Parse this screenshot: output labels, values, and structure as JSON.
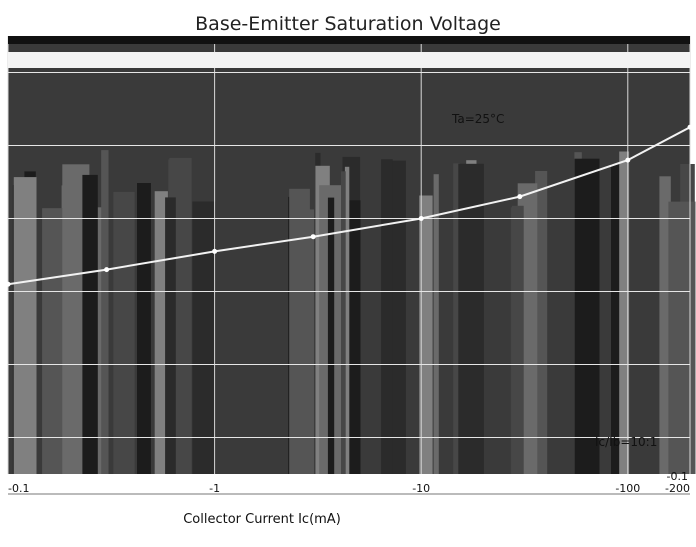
{
  "chart_data": {
    "type": "line",
    "title": "Base-Emitter Saturation Voltage",
    "xlabel": "Collector Current   Ic(mA)",
    "ylabel": "",
    "x_scale": "log",
    "xlim": [
      -0.1,
      -200
    ],
    "x_tick_labels": [
      "-0.1",
      "-1",
      "-10",
      "-100",
      "-200"
    ],
    "x_tick_values": [
      -0.1,
      -1,
      -10,
      -100,
      -200
    ],
    "y_tick_labels": [
      "-0.1"
    ],
    "annotations": [
      "Ta=25°C",
      "Ic/Ib=10:1"
    ],
    "grid": true,
    "series": [
      {
        "x": [
          -0.1,
          -0.3,
          -1,
          -3,
          -10,
          -30,
          -100,
          -200
        ],
        "y": [
          -0.62,
          -0.66,
          -0.71,
          -0.75,
          -0.8,
          -0.86,
          -0.96,
          -1.05
        ]
      }
    ]
  }
}
